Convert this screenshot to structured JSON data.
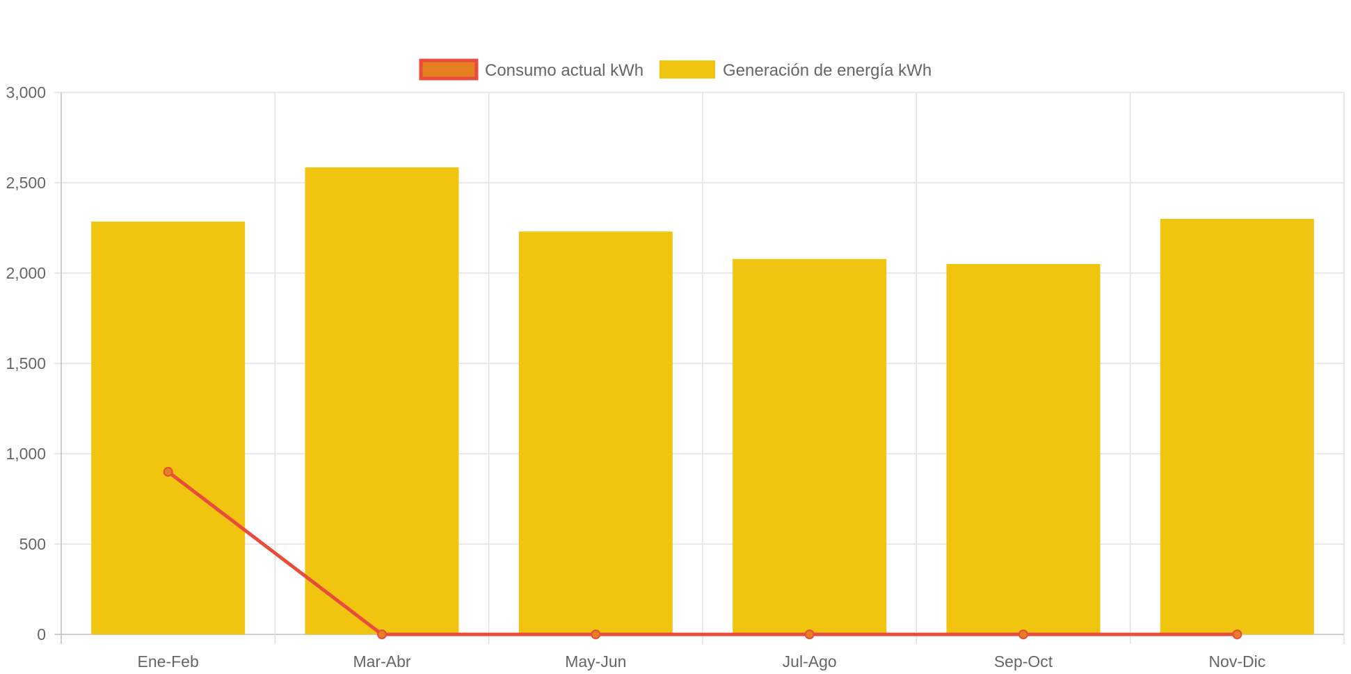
{
  "chart_data": {
    "type": "bar",
    "categories": [
      "Ene-Feb",
      "Mar-Abr",
      "May-Jun",
      "Jul-Ago",
      "Sep-Oct",
      "Nov-Dic"
    ],
    "series": [
      {
        "name": "Consumo actual kWh",
        "type": "line",
        "values": [
          900,
          0,
          0,
          0,
          0,
          0
        ],
        "color": "#e74c3c",
        "point_color": "#e67e22"
      },
      {
        "name": "Generación de energía kWh",
        "type": "bar",
        "values": [
          2285,
          2585,
          2230,
          2078,
          2050,
          2300
        ],
        "color": "#f1c40f"
      }
    ],
    "ylim": [
      0,
      3000
    ],
    "yticks": [
      0,
      500,
      1000,
      1500,
      2000,
      2500,
      3000
    ],
    "ytick_labels": [
      "0",
      "500",
      "1,000",
      "1,500",
      "2,000",
      "2,500",
      "3,000"
    ],
    "grid": true,
    "legend_position": "top",
    "title": "",
    "xlabel": "",
    "ylabel": ""
  }
}
